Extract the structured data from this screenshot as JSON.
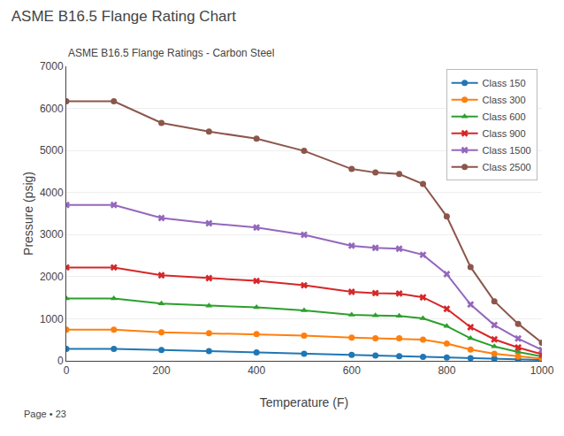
{
  "chart_data": {
    "type": "line",
    "title": "ASME B16.5 Flange Rating Chart",
    "subtitle": "ASME B16.5 Flange Ratings - Carbon Steel",
    "xlabel": "Temperature (F)",
    "ylabel": "Pressure (psig)",
    "annotations": [
      "Page • 23"
    ],
    "x": [
      0,
      100,
      200,
      300,
      400,
      500,
      600,
      650,
      700,
      750,
      800,
      850,
      900,
      950,
      1000
    ],
    "xlim": [
      0,
      1000
    ],
    "xticks": [
      0,
      200,
      400,
      600,
      800,
      1000
    ],
    "ylim": [
      0,
      7000
    ],
    "yticks": [
      0,
      1000,
      2000,
      3000,
      4000,
      5000,
      6000,
      7000
    ],
    "grid": "y",
    "legend": "upper right",
    "series": [
      {
        "name": "Class 150",
        "marker": "circle",
        "values": [
          285,
          285,
          260,
          230,
          200,
          170,
          140,
          125,
          110,
          95,
          80,
          65,
          50,
          35,
          20
        ]
      },
      {
        "name": "Class 300",
        "marker": "circle",
        "values": [
          740,
          740,
          680,
          655,
          635,
          600,
          550,
          535,
          535,
          505,
          410,
          270,
          170,
          105,
          50
        ]
      },
      {
        "name": "Class 600",
        "marker": "triangle-up",
        "values": [
          1480,
          1480,
          1360,
          1310,
          1270,
          1200,
          1095,
          1075,
          1065,
          1010,
          825,
          535,
          340,
          210,
          105
        ]
      },
      {
        "name": "Class 900",
        "marker": "x",
        "values": [
          2220,
          2220,
          2035,
          1965,
          1900,
          1795,
          1640,
          1610,
          1600,
          1510,
          1235,
          800,
          510,
          315,
          155
        ]
      },
      {
        "name": "Class 1500",
        "marker": "x",
        "values": [
          3705,
          3705,
          3395,
          3270,
          3170,
          2995,
          2735,
          2685,
          2665,
          2520,
          2060,
          1340,
          850,
          530,
          260
        ]
      },
      {
        "name": "Class 2500",
        "marker": "circle",
        "values": [
          6170,
          6170,
          5655,
          5450,
          5280,
          4990,
          4560,
          4475,
          4440,
          4205,
          3430,
          2230,
          1415,
          880,
          430
        ]
      }
    ]
  }
}
